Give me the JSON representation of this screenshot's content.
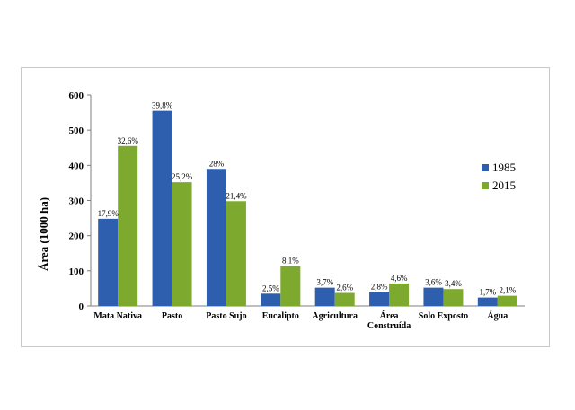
{
  "chart_data": {
    "type": "bar",
    "title": "",
    "xlabel": "",
    "ylabel": "Área (1000 ha)",
    "ylim": [
      0,
      600
    ],
    "yticks": [
      "0",
      "100",
      "200",
      "300",
      "400",
      "500",
      "600"
    ],
    "grid": false,
    "legend_position": "right",
    "categories": [
      [
        "Mata Nativa"
      ],
      [
        "Pasto"
      ],
      [
        "Pasto Sujo"
      ],
      [
        "Eucalipto"
      ],
      [
        "Agricultura"
      ],
      [
        "Área",
        "Construída"
      ],
      [
        "Solo Exposto"
      ],
      [
        "Água"
      ]
    ],
    "series": [
      {
        "name": "1985",
        "color": "#2E5FAF",
        "values": [
          248,
          555,
          390,
          35,
          52,
          40,
          52,
          24
        ],
        "labels": [
          "17,9%",
          "39,8%",
          "28%",
          "2,5%",
          "3,7%",
          "2,8%",
          "3,6%",
          "1,7%"
        ]
      },
      {
        "name": "2015",
        "color": "#7DAA2E",
        "values": [
          455,
          352,
          298,
          113,
          37,
          64,
          48,
          29
        ],
        "labels": [
          "32,6%",
          "25,2%",
          "21,4%",
          "8,1%",
          "2,6%",
          "4,6%",
          "3,4%",
          "2,1%"
        ]
      }
    ]
  }
}
